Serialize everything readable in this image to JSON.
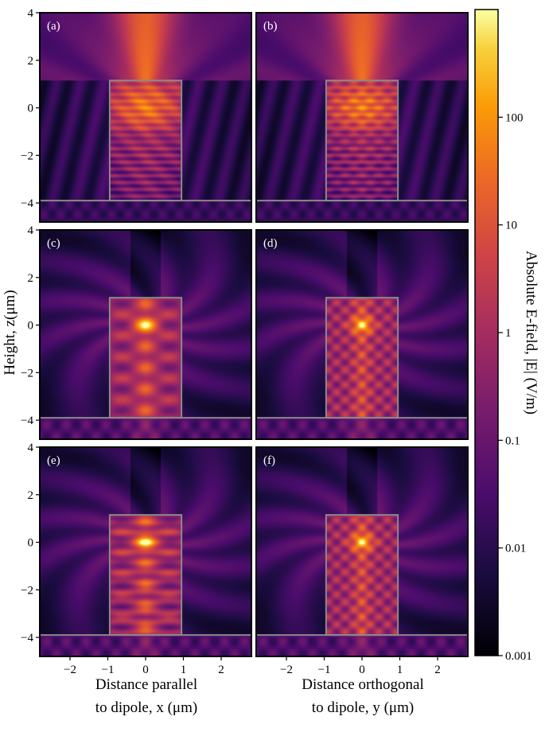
{
  "chart_data": {
    "type": "heatmap",
    "panels": [
      {
        "label": "(a)",
        "row": 0,
        "col": 0,
        "mode": "a"
      },
      {
        "label": "(b)",
        "row": 0,
        "col": 1,
        "mode": "b"
      },
      {
        "label": "(c)",
        "row": 1,
        "col": 0,
        "mode": "c"
      },
      {
        "label": "(d)",
        "row": 1,
        "col": 1,
        "mode": "d"
      },
      {
        "label": "(e)",
        "row": 2,
        "col": 0,
        "mode": "e"
      },
      {
        "label": "(f)",
        "row": 2,
        "col": 1,
        "mode": "f"
      }
    ],
    "xlim": [
      -2.8,
      2.8
    ],
    "ylim": [
      -4.8,
      4.0
    ],
    "xticks": [
      -2,
      -1,
      0,
      1,
      2
    ],
    "xtick_labels": [
      "−2",
      "−1",
      "0",
      "1",
      "2"
    ],
    "yticks": [
      4,
      2,
      0,
      -2,
      -4
    ],
    "ytick_labels": [
      "4",
      "2",
      "0",
      "−2",
      "−4"
    ],
    "structure": {
      "pillar_x": [
        -0.95,
        0.95
      ],
      "pillar_z": [
        -3.9,
        1.15
      ],
      "substrate_z": -3.9
    },
    "ylabel": "Height, z(μm)",
    "xlabel_left": [
      "Distance parallel",
      "to dipole, x (μm)"
    ],
    "xlabel_right": [
      "Distance orthogonal",
      "to dipole, y (μm)"
    ],
    "colorbar": {
      "label": "Absolute E-field, |E| (V/m)",
      "scale": "log",
      "range": [
        0.001,
        1000
      ],
      "ticks": [
        100,
        10,
        1,
        0.1,
        0.01,
        0.001
      ],
      "tick_labels": [
        "100",
        "10",
        "1",
        "0.1",
        "0.01",
        "0.001"
      ],
      "colormap": "inferno"
    }
  }
}
